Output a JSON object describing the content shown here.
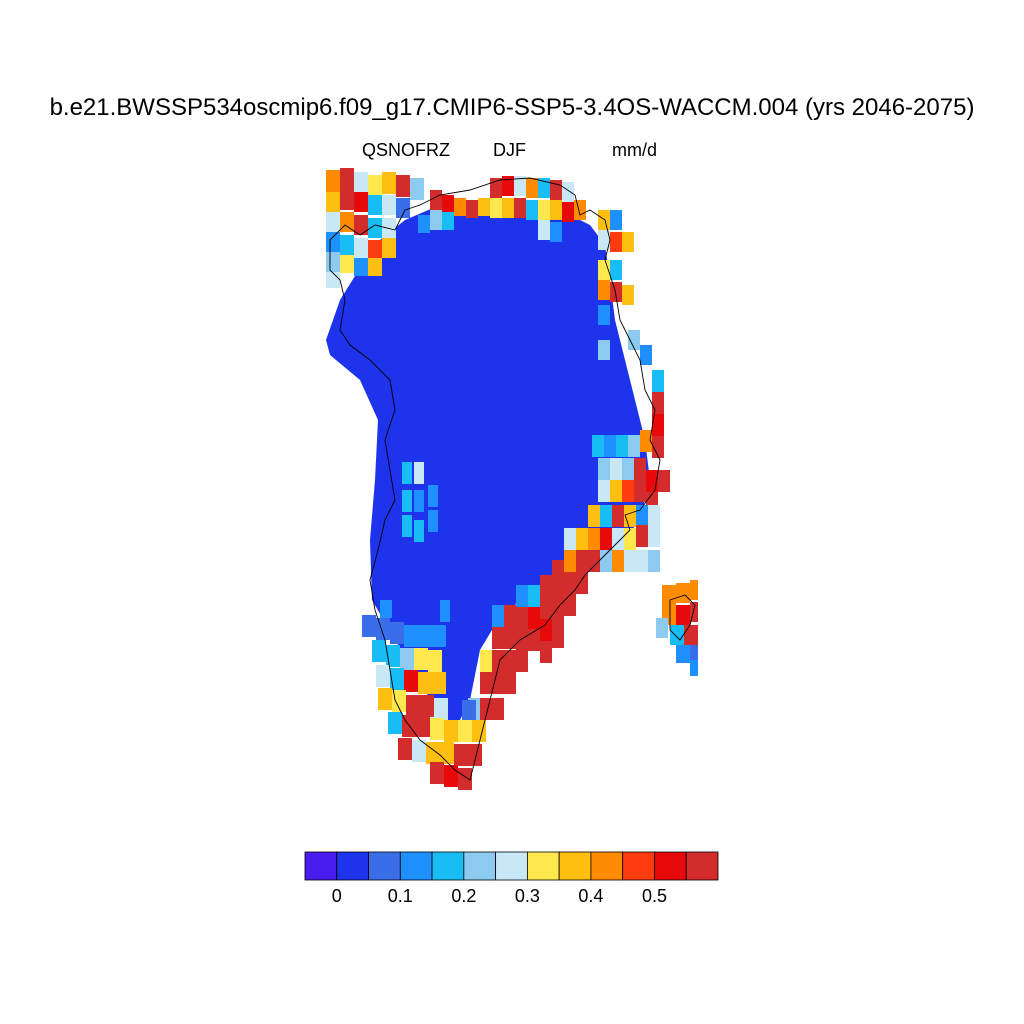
{
  "title": "b.e21.BWSSP534oscmip6.f09_g17.CMIP6-SSP5-3.4OS-WACCM.004 (yrs 2046-2075)",
  "variable": "QSNOFRZ",
  "season": "DJF",
  "units": "mm/d",
  "colorbar": {
    "colors": [
      "#4a1cf0",
      "#1e34ec",
      "#3a6ee8",
      "#1e90ff",
      "#19bdf5",
      "#8ccbef",
      "#c8e8f6",
      "#ffe84d",
      "#ffbf10",
      "#ff8c00",
      "#ff3c10",
      "#e80a0a",
      "#d22c2c"
    ],
    "labels": [
      "0",
      "0.1",
      "0.2",
      "0.3",
      "0.4",
      "0.5"
    ]
  },
  "map": {
    "region": "Greenland",
    "ice_sheet_color": "#1e34ec"
  }
}
